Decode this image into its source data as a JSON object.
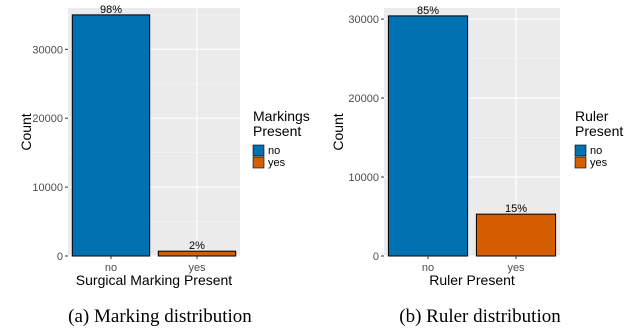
{
  "chart_data": [
    {
      "type": "bar",
      "xlabel": "Surgical Marking Present",
      "ylabel": "Count",
      "categories": [
        "no",
        "yes"
      ],
      "values": [
        35000,
        700
      ],
      "bar_labels": [
        "98%",
        "2%"
      ],
      "ylim": [
        0,
        36000
      ],
      "yticks": [
        0,
        10000,
        20000,
        30000
      ],
      "ytick_labels": [
        "0",
        "10000",
        "20000",
        "30000"
      ],
      "legend": {
        "title": [
          "Markings",
          "Present"
        ],
        "placement": "right",
        "entries": [
          "no",
          "yes"
        ]
      },
      "colors": [
        "#0072B2",
        "#D55E00"
      ],
      "caption": "(a) Marking distribution",
      "grid": true
    },
    {
      "type": "bar",
      "xlabel": "Ruler Present",
      "ylabel": "Count",
      "categories": [
        "no",
        "yes"
      ],
      "values": [
        30400,
        5300
      ],
      "bar_labels": [
        "85%",
        "15%"
      ],
      "ylim": [
        0,
        31400
      ],
      "yticks": [
        0,
        10000,
        20000,
        30000
      ],
      "ytick_labels": [
        "0",
        "10000",
        "20000",
        "30000"
      ],
      "legend": {
        "title": [
          "Ruler",
          "Present"
        ],
        "placement": "right",
        "entries": [
          "no",
          "yes"
        ]
      },
      "colors": [
        "#0072B2",
        "#D55E00"
      ],
      "caption": "(b) Ruler distribution",
      "grid": true
    }
  ]
}
